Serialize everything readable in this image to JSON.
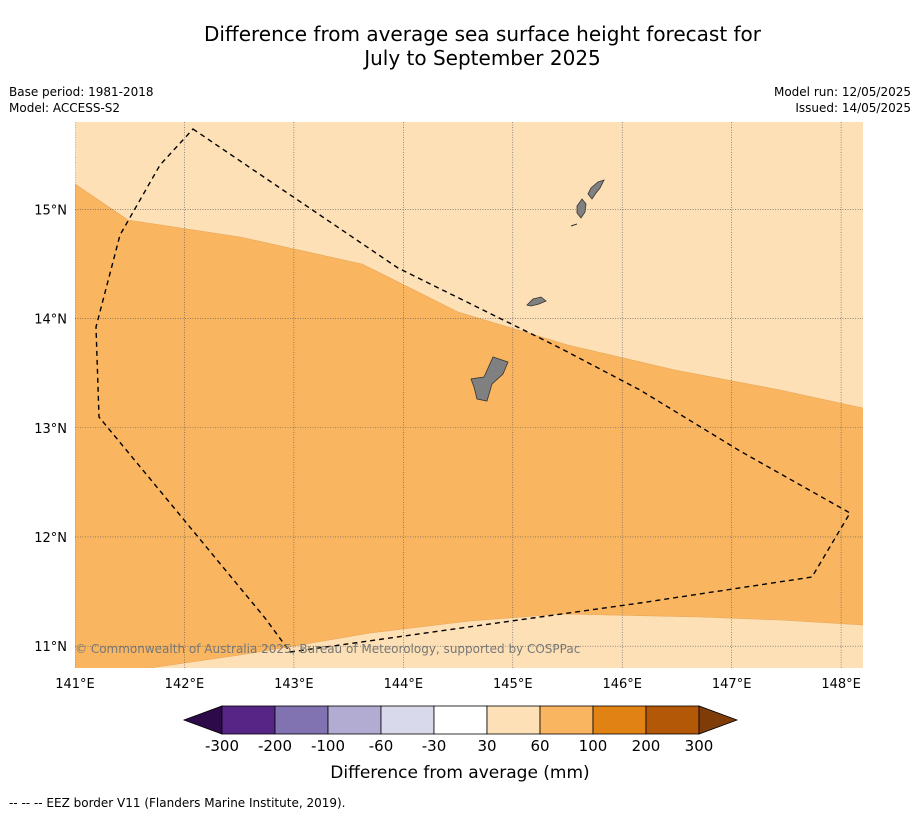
{
  "title_line1": "Difference from average sea surface height forecast for",
  "title_line2": "July to September 2025",
  "base_period": "Base period: 1981-2018",
  "model": "Model: ACCESS-S2",
  "model_run": "Model run: 12/05/2025",
  "issued": "Issued: 14/05/2025",
  "copyright": "© Commonwealth of Australia 2025, Bureau of Meteorology, supported by COSPPac",
  "footer": "--  --  -- EEZ border V11 (Flanders Marine Institute, 2019).",
  "map": {
    "lon_labels": [
      "141°E",
      "142°E",
      "143°E",
      "144°E",
      "145°E",
      "146°E",
      "147°E",
      "148°E"
    ],
    "lat_labels": [
      "15°N",
      "14°N",
      "13°N",
      "12°N",
      "11°N"
    ],
    "lon_ticks": [
      141,
      142,
      143,
      144,
      145,
      146,
      147,
      148
    ],
    "lat_ticks": [
      15,
      14,
      13,
      12,
      11
    ],
    "colors": {
      "band_30_60": "#fde0b6",
      "band_60_100": "#f9b560",
      "land": "#808080",
      "eez": "#000000"
    }
  },
  "colorbar": {
    "label": "Difference from average (mm)",
    "ticks": [
      "-300",
      "-200",
      "-100",
      "-60",
      "-30",
      "30",
      "60",
      "100",
      "200",
      "300"
    ],
    "colors": [
      "#572586",
      "#8172b2",
      "#b2abd2",
      "#d8daeb",
      "#ffffff",
      "#fde0b6",
      "#f9b560",
      "#e08214",
      "#b35806"
    ],
    "under_color": "#2d0a4a",
    "over_color": "#7f3b08"
  }
}
